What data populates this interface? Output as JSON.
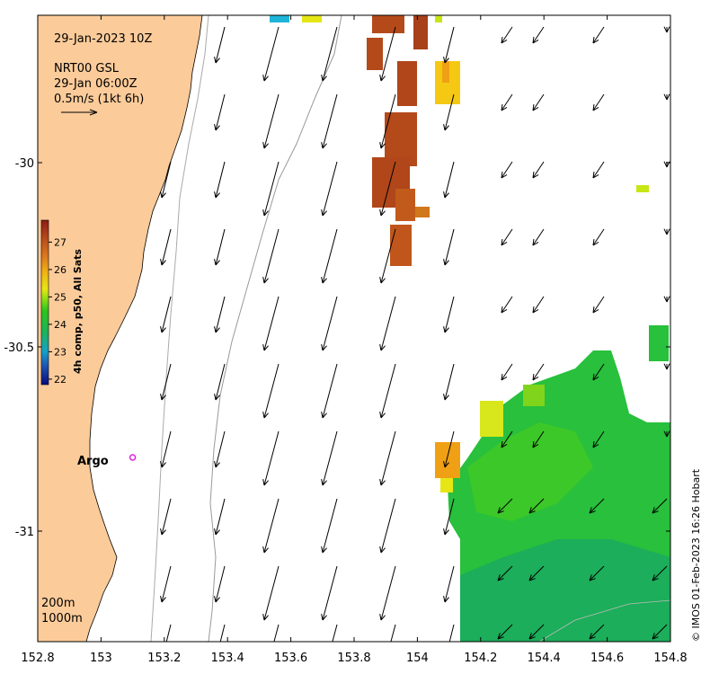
{
  "info": {
    "datetime": "29-Jan-2023 10Z",
    "current_source": "NRT00 GSL",
    "current_time": "29-Jan 06:00Z",
    "scale_label": "0.5m/s (1kt 6h)"
  },
  "colorbar": {
    "title": "4h comp, p50, All Sats",
    "ticks": [
      "22",
      "23",
      "24",
      "25",
      "26",
      "27"
    ],
    "range": [
      21.8,
      27.8
    ],
    "colors": [
      "#0a0a80",
      "#1e5ab4",
      "#14a0c8",
      "#1cb45a",
      "#2cc41c",
      "#8cdc14",
      "#e6e614",
      "#f0b414",
      "#dc781e",
      "#b4461e",
      "#8c1e14"
    ]
  },
  "axes": {
    "x_ticks": [
      "152.8",
      "153",
      "153.2",
      "153.4",
      "153.6",
      "153.8",
      "154",
      "154.2",
      "154.4",
      "154.6",
      "154.8"
    ],
    "y_ticks": [
      "-30",
      "-30.5",
      "-31"
    ],
    "lon_range": [
      152.8,
      154.8
    ],
    "lat_range": [
      -31.3,
      -29.6
    ]
  },
  "argo": {
    "label": "Argo",
    "lon": 153.1,
    "lat": -30.8
  },
  "bathymetry": {
    "contour_1": "200m",
    "contour_2": "1000m"
  },
  "credit": "© IMOS 01-Feb-2023 16:26 Hobart",
  "colors": {
    "land": "#fbcb9a",
    "frame": "#000000",
    "contour": "#aaaaaa",
    "argo": "#e020e0"
  }
}
